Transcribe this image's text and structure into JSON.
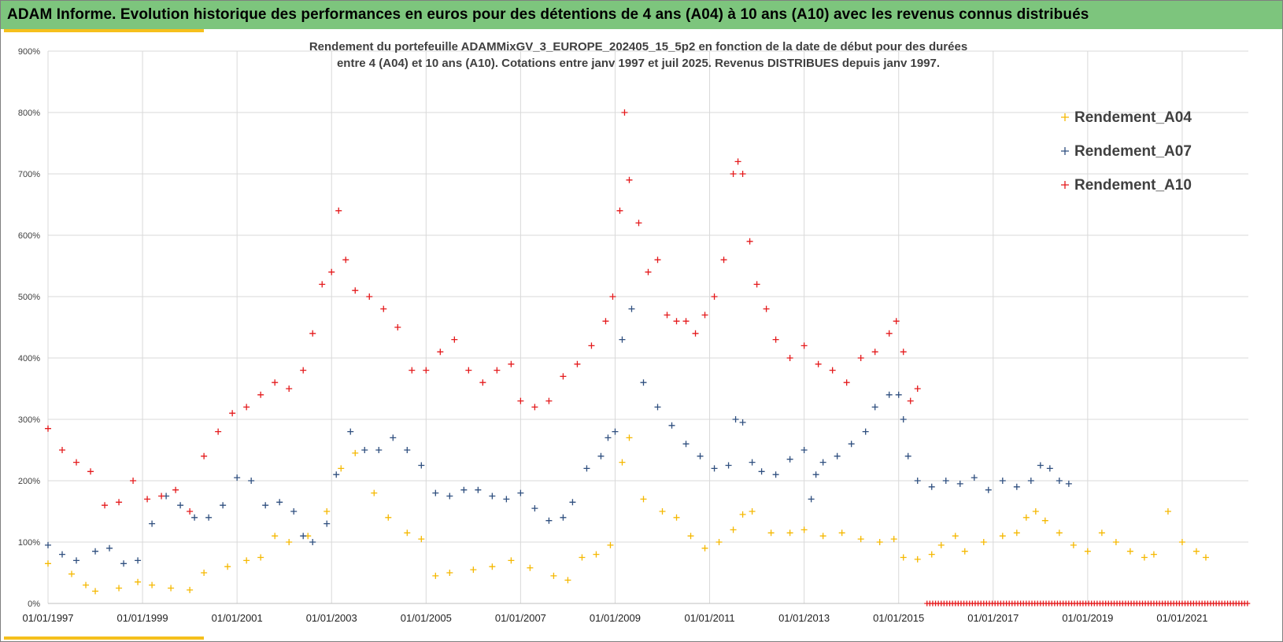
{
  "header": {
    "title": "ADAM Informe. Evolution historique des performances en euros pour des détentions de 4 ans (A04) à 10 ans (A10) avec les revenus connus distribués"
  },
  "colors": {
    "header_bg": "#7dc57d",
    "accent": "#f5c01c",
    "A04": "#f5b800",
    "A07": "#2f4f7f",
    "A10": "#e41a1c"
  },
  "chart_data": {
    "type": "scatter",
    "title_lines": [
      "Rendement du portefeuille ADAMMixGV_3_EUROPE_202405_15_5p2  en fonction de la date de début pour des durées",
      "entre 4 (A04) et 10 ans (A10). Cotations  entre janv 1997 et juil 2025. Revenus DISTRIBUES depuis janv 1997."
    ],
    "xlabel": "",
    "ylabel": "",
    "x_unit": "year",
    "xlim": [
      1997.0,
      2022.4
    ],
    "ylim": [
      0,
      900
    ],
    "y_ticks": [
      0,
      100,
      200,
      300,
      400,
      500,
      600,
      700,
      800,
      900
    ],
    "y_tick_labels": [
      "0%",
      "100%",
      "200%",
      "300%",
      "400%",
      "500%",
      "600%",
      "700%",
      "800%",
      "900%"
    ],
    "x_ticks": [
      1997,
      1999,
      2001,
      2003,
      2005,
      2007,
      2009,
      2011,
      2013,
      2015,
      2017,
      2019,
      2021
    ],
    "x_tick_labels": [
      "01/01/1997",
      "01/01/1999",
      "01/01/2001",
      "01/01/2003",
      "01/01/2005",
      "01/01/2007",
      "01/01/2009",
      "01/01/2011",
      "01/01/2013",
      "01/01/2015",
      "01/01/2017",
      "01/01/2019",
      "01/01/2021"
    ],
    "grid": true,
    "legend_position": "top-right",
    "marker": "+",
    "series": [
      {
        "name": "Rendement_A04",
        "color": "#f5b800",
        "x": [
          1997.0,
          1997.5,
          1997.8,
          1998.0,
          1998.5,
          1998.9,
          1999.2,
          1999.6,
          2000.0,
          2000.3,
          2000.8,
          2001.2,
          2001.5,
          2001.8,
          2002.1,
          2002.5,
          2002.9,
          2003.2,
          2003.5,
          2003.9,
          2004.2,
          2004.6,
          2004.9,
          2005.2,
          2005.5,
          2006.0,
          2006.4,
          2006.8,
          2007.2,
          2007.7,
          2008.0,
          2008.3,
          2008.6,
          2008.9,
          2009.15,
          2009.3,
          2009.6,
          2010.0,
          2010.3,
          2010.6,
          2010.9,
          2011.2,
          2011.5,
          2011.7,
          2011.9,
          2012.3,
          2012.7,
          2013.0,
          2013.4,
          2013.8,
          2014.2,
          2014.6,
          2014.9,
          2015.1,
          2015.4,
          2015.7,
          2015.9,
          2016.2,
          2016.4,
          2016.8,
          2017.2,
          2017.5,
          2017.7,
          2017.9,
          2018.1,
          2018.4,
          2018.7,
          2019.0,
          2019.3,
          2019.6,
          2019.9,
          2020.2,
          2020.4,
          2020.7,
          2021.0,
          2021.3,
          2021.5
        ],
        "y": [
          65,
          48,
          30,
          20,
          25,
          35,
          30,
          25,
          22,
          50,
          60,
          70,
          75,
          110,
          100,
          110,
          150,
          220,
          245,
          180,
          140,
          115,
          105,
          45,
          50,
          55,
          60,
          70,
          58,
          45,
          38,
          75,
          80,
          95,
          230,
          270,
          170,
          150,
          140,
          110,
          90,
          100,
          120,
          145,
          150,
          115,
          115,
          120,
          110,
          115,
          105,
          100,
          105,
          75,
          72,
          80,
          95,
          110,
          85,
          100,
          110,
          115,
          140,
          150,
          135,
          115,
          95,
          85,
          115,
          100,
          85,
          75,
          80,
          150,
          100,
          85,
          75
        ]
      },
      {
        "name": "Rendement_A07",
        "color": "#2f4f7f",
        "x": [
          1997.0,
          1997.3,
          1997.6,
          1998.0,
          1998.3,
          1998.6,
          1998.9,
          1999.2,
          1999.5,
          1999.8,
          2000.1,
          2000.4,
          2000.7,
          2001.0,
          2001.3,
          2001.6,
          2001.9,
          2002.2,
          2002.4,
          2002.6,
          2002.9,
          2003.1,
          2003.4,
          2003.7,
          2004.0,
          2004.3,
          2004.6,
          2004.9,
          2005.2,
          2005.5,
          2005.8,
          2006.1,
          2006.4,
          2006.7,
          2007.0,
          2007.3,
          2007.6,
          2007.9,
          2008.1,
          2008.4,
          2008.7,
          2008.85,
          2009.0,
          2009.15,
          2009.35,
          2009.6,
          2009.9,
          2010.2,
          2010.5,
          2010.8,
          2011.1,
          2011.4,
          2011.55,
          2011.7,
          2011.9,
          2012.1,
          2012.4,
          2012.7,
          2013.0,
          2013.15,
          2013.25,
          2013.4,
          2013.7,
          2014.0,
          2014.3,
          2014.5,
          2014.8,
          2015.0,
          2015.1,
          2015.2,
          2015.4,
          2015.7,
          2016.0,
          2016.3,
          2016.6,
          2016.9,
          2017.2,
          2017.5,
          2017.8,
          2018.0,
          2018.2,
          2018.4,
          2018.6
        ],
        "y": [
          95,
          80,
          70,
          85,
          90,
          65,
          70,
          130,
          175,
          160,
          140,
          140,
          160,
          205,
          200,
          160,
          165,
          150,
          110,
          100,
          130,
          210,
          280,
          250,
          250,
          270,
          250,
          225,
          180,
          175,
          185,
          185,
          175,
          170,
          180,
          155,
          135,
          140,
          165,
          220,
          240,
          270,
          280,
          430,
          480,
          360,
          320,
          290,
          260,
          240,
          220,
          225,
          300,
          295,
          230,
          215,
          210,
          235,
          250,
          170,
          210,
          230,
          240,
          260,
          280,
          320,
          340,
          340,
          300,
          240,
          200,
          190,
          200,
          195,
          205,
          185,
          200,
          190,
          200,
          225,
          220,
          200,
          195
        ]
      },
      {
        "name": "Rendement_A10",
        "color": "#e41a1c",
        "x": [
          1997.0,
          1997.3,
          1997.6,
          1997.9,
          1998.2,
          1998.5,
          1998.8,
          1999.1,
          1999.4,
          1999.7,
          2000.0,
          2000.3,
          2000.6,
          2000.9,
          2001.2,
          2001.5,
          2001.8,
          2002.1,
          2002.4,
          2002.6,
          2002.8,
          2003.0,
          2003.15,
          2003.3,
          2003.5,
          2003.8,
          2004.1,
          2004.4,
          2004.7,
          2005.0,
          2005.3,
          2005.6,
          2005.9,
          2006.2,
          2006.5,
          2006.8,
          2007.0,
          2007.3,
          2007.6,
          2007.9,
          2008.2,
          2008.5,
          2008.8,
          2008.95,
          2009.1,
          2009.2,
          2009.3,
          2009.5,
          2009.7,
          2009.9,
          2010.1,
          2010.3,
          2010.5,
          2010.7,
          2010.9,
          2011.1,
          2011.3,
          2011.5,
          2011.6,
          2011.7,
          2011.85,
          2012.0,
          2012.2,
          2012.4,
          2012.7,
          2013.0,
          2013.3,
          2013.6,
          2013.9,
          2014.2,
          2014.5,
          2014.8,
          2014.95,
          2015.1,
          2015.25,
          2015.4
        ],
        "y": [
          285,
          250,
          230,
          215,
          160,
          165,
          200,
          170,
          175,
          185,
          150,
          240,
          280,
          310,
          320,
          340,
          360,
          350,
          380,
          440,
          520,
          540,
          640,
          560,
          510,
          500,
          480,
          450,
          380,
          380,
          410,
          430,
          380,
          360,
          380,
          390,
          330,
          320,
          330,
          370,
          390,
          420,
          460,
          500,
          640,
          800,
          690,
          620,
          540,
          560,
          470,
          460,
          460,
          440,
          470,
          500,
          560,
          700,
          720,
          700,
          590,
          520,
          480,
          430,
          400,
          420,
          390,
          380,
          360,
          400,
          410,
          440,
          460,
          410,
          330,
          350
        ]
      },
      {
        "name": "",
        "color": "#e41a1c",
        "x_range": [
          2015.6,
          2022.4
        ],
        "y_constant": 0
      }
    ]
  }
}
